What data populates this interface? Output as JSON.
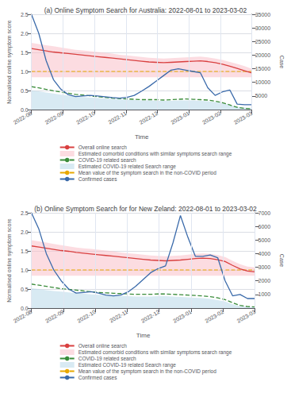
{
  "chart_data": [
    {
      "type": "line",
      "title": "(a) Online Symptom Search for Australia: 2022-08-01 to 2023-03-02",
      "xlabel": "Time",
      "ylabel": "Normalised online symptom score",
      "y2label": "Case",
      "x": [
        0,
        1,
        2,
        3,
        4,
        5,
        6,
        7,
        8,
        9,
        10,
        11,
        12,
        13,
        14,
        15,
        16,
        17,
        18,
        19,
        20,
        21,
        22,
        23,
        24,
        25,
        26,
        27,
        28,
        29,
        30
      ],
      "xlim": [
        0,
        30
      ],
      "xticks": [
        {
          "value": 0,
          "label": "2022-08"
        },
        {
          "value": 4.285714285714286,
          "label": "2022-09"
        },
        {
          "value": 8.571428571428571,
          "label": "2022-10"
        },
        {
          "value": 12.857142857142858,
          "label": "2022-11"
        },
        {
          "value": 17.142857142857142,
          "label": "2022-12"
        },
        {
          "value": 21.428571428571427,
          "label": "2023-01"
        },
        {
          "value": 25.714285714285715,
          "label": "2023-02"
        },
        {
          "value": 30,
          "label": "2023-03"
        }
      ],
      "ylim": [
        0.0,
        2.5
      ],
      "yticks": [
        {
          "value": 0.0,
          "label": "0.0"
        },
        0.5,
        {
          "value": 1.0,
          "label": "1.0"
        },
        1.5,
        {
          "value": 2.0,
          "label": "2.0"
        },
        2.5
      ],
      "y2lim": [
        0,
        35000
      ],
      "y2ticks": [
        5000,
        10000,
        15000,
        20000,
        25000,
        30000,
        35000
      ],
      "grid": true,
      "legend": "bottom",
      "series": [
        {
          "name": "Overall online search",
          "type": "line",
          "color": "#d94040",
          "line_style": "solid",
          "values": [
            1.6,
            1.57,
            1.54,
            1.51,
            1.49,
            1.47,
            1.45,
            1.43,
            1.41,
            1.39,
            1.37,
            1.35,
            1.33,
            1.31,
            1.29,
            1.27,
            1.25,
            1.24,
            1.23,
            1.24,
            1.25,
            1.26,
            1.27,
            1.28,
            1.26,
            1.23,
            1.19,
            1.14,
            1.08,
            1.02,
            0.96
          ]
        },
        {
          "name": "Estimated comorbid conditions with similar symptoms search range",
          "type": "band",
          "color": "#f9c0c8",
          "lower": [
            0.85,
            0.85,
            0.85,
            0.85,
            0.85,
            0.85,
            0.85,
            0.85,
            0.85,
            0.85,
            0.85,
            0.85,
            0.85,
            0.85,
            0.85,
            0.85,
            0.85,
            0.85,
            0.85,
            0.85,
            0.85,
            0.85,
            0.85,
            0.85,
            0.85,
            0.85,
            0.85,
            0.85,
            0.85,
            0.85,
            0.85
          ],
          "upper": [
            1.75,
            1.72,
            1.69,
            1.66,
            1.63,
            1.6,
            1.57,
            1.55,
            1.53,
            1.51,
            1.49,
            1.47,
            1.44,
            1.42,
            1.4,
            1.38,
            1.36,
            1.35,
            1.34,
            1.35,
            1.36,
            1.37,
            1.38,
            1.39,
            1.37,
            1.34,
            1.3,
            1.25,
            1.2,
            1.14,
            1.07
          ]
        },
        {
          "name": "COVID-19 related search",
          "type": "line",
          "color": "#3a8c3a",
          "line_style": "dashed",
          "values": [
            0.6,
            0.57,
            0.53,
            0.49,
            0.46,
            0.43,
            0.4,
            0.38,
            0.36,
            0.34,
            0.32,
            0.3,
            0.29,
            0.28,
            0.27,
            0.26,
            0.26,
            0.26,
            0.25,
            0.26,
            0.27,
            0.28,
            0.27,
            0.26,
            0.25,
            0.22,
            0.18,
            0.12,
            0.06,
            0.03,
            0.02
          ]
        },
        {
          "name": "Estimated COVID-19 related Search range",
          "type": "band",
          "color": "#b8d8ea",
          "lower": [
            0.0,
            0.0,
            0.0,
            0.0,
            0.0,
            0.0,
            0.0,
            0.0,
            0.0,
            0.0,
            0.0,
            0.0,
            0.0,
            0.0,
            0.0,
            0.0,
            0.0,
            0.0,
            0.0,
            0.0,
            0.0,
            0.0,
            0.0,
            0.0,
            0.0,
            0.0,
            0.0,
            0.0,
            0.0,
            0.0,
            0.0
          ],
          "upper": [
            0.5,
            0.48,
            0.45,
            0.42,
            0.39,
            0.37,
            0.35,
            0.33,
            0.31,
            0.3,
            0.29,
            0.28,
            0.27,
            0.26,
            0.25,
            0.24,
            0.24,
            0.23,
            0.23,
            0.23,
            0.24,
            0.24,
            0.24,
            0.23,
            0.22,
            0.2,
            0.17,
            0.12,
            0.07,
            0.05,
            0.04
          ]
        },
        {
          "name": "Mean value of the symptom search in the non-COVID period",
          "type": "hline",
          "color": "#e8a800",
          "line_style": "dashed",
          "y": 1.0
        },
        {
          "name": "Confirmed cases",
          "type": "line",
          "color": "#3a6aaa",
          "line_style": "solid",
          "axis": "y2",
          "values": [
            35000,
            28000,
            18000,
            11000,
            7500,
            5500,
            4800,
            5000,
            5200,
            5000,
            4700,
            4400,
            4200,
            4500,
            5200,
            6800,
            8500,
            10500,
            12500,
            14500,
            15000,
            14500,
            14000,
            13500,
            8000,
            5200,
            6500,
            7200,
            2000,
            1800,
            1800
          ]
        }
      ]
    },
    {
      "type": "line",
      "title": "(b) Online Symptom Search for for New Zeland: 2022-08-01 to 2023-03-02",
      "xlabel": "Time",
      "ylabel": "Normalised online symptom score",
      "y2label": "Case",
      "x": [
        0,
        1,
        2,
        3,
        4,
        5,
        6,
        7,
        8,
        9,
        10,
        11,
        12,
        13,
        14,
        15,
        16,
        17,
        18,
        19,
        20,
        21,
        22,
        23,
        24,
        25,
        26,
        27,
        28,
        29,
        30
      ],
      "xlim": [
        0,
        30
      ],
      "xticks": [
        {
          "value": 0,
          "label": "2022-08"
        },
        {
          "value": 4.285714285714286,
          "label": "2022-09"
        },
        {
          "value": 8.571428571428571,
          "label": "2022-10"
        },
        {
          "value": 12.857142857142858,
          "label": "2022-11"
        },
        {
          "value": 17.142857142857142,
          "label": "2022-12"
        },
        {
          "value": 21.428571428571427,
          "label": "2023-01"
        },
        {
          "value": 25.714285714285715,
          "label": "2023-02"
        },
        {
          "value": 30,
          "label": "2023-03"
        }
      ],
      "ylim": [
        0.0,
        2.5
      ],
      "yticks": [
        {
          "value": 0.0,
          "label": "0.0"
        },
        0.5,
        {
          "value": 1.0,
          "label": "1.0"
        },
        1.5,
        {
          "value": 2.0,
          "label": "2.0"
        },
        2.5
      ],
      "y2lim": [
        0,
        7000
      ],
      "y2ticks": [
        1000,
        2000,
        3000,
        4000,
        5000,
        6000,
        7000
      ],
      "grid": true,
      "legend": "bottom",
      "series": [
        {
          "name": "Overall online search",
          "type": "line",
          "color": "#d94040",
          "line_style": "solid",
          "values": [
            1.63,
            1.6,
            1.57,
            1.54,
            1.51,
            1.49,
            1.46,
            1.44,
            1.42,
            1.4,
            1.38,
            1.36,
            1.34,
            1.32,
            1.3,
            1.28,
            1.26,
            1.25,
            1.24,
            1.25,
            1.26,
            1.28,
            1.3,
            1.31,
            1.3,
            1.27,
            1.22,
            1.12,
            1.03,
            0.97,
            0.95
          ]
        },
        {
          "name": "Estimated comorbid conditions with similar symptoms search range",
          "type": "band",
          "color": "#f9c0c8",
          "lower": [
            0.85,
            0.85,
            0.85,
            0.85,
            0.85,
            0.85,
            0.85,
            0.85,
            0.85,
            0.85,
            0.85,
            0.85,
            0.85,
            0.85,
            0.85,
            0.85,
            0.85,
            0.85,
            0.85,
            0.85,
            0.85,
            0.85,
            0.85,
            0.85,
            0.85,
            0.85,
            0.85,
            0.85,
            0.85,
            0.85,
            0.85
          ],
          "upper": [
            1.78,
            1.75,
            1.72,
            1.68,
            1.65,
            1.62,
            1.59,
            1.57,
            1.55,
            1.53,
            1.51,
            1.49,
            1.46,
            1.44,
            1.42,
            1.4,
            1.38,
            1.37,
            1.36,
            1.37,
            1.38,
            1.4,
            1.42,
            1.43,
            1.42,
            1.39,
            1.34,
            1.24,
            1.15,
            1.09,
            1.07
          ]
        },
        {
          "name": "COVID-19 related search",
          "type": "line",
          "color": "#3a8c3a",
          "line_style": "dashed",
          "values": [
            0.63,
            0.6,
            0.57,
            0.54,
            0.51,
            0.49,
            0.47,
            0.45,
            0.43,
            0.41,
            0.4,
            0.39,
            0.38,
            0.37,
            0.36,
            0.36,
            0.36,
            0.37,
            0.37,
            0.36,
            0.35,
            0.34,
            0.33,
            0.32,
            0.3,
            0.27,
            0.22,
            0.14,
            0.07,
            0.04,
            0.03
          ]
        },
        {
          "name": "Estimated COVID-19 related Search range",
          "type": "band",
          "color": "#b8d8ea",
          "lower": [
            0.0,
            0.0,
            0.0,
            0.0,
            0.0,
            0.0,
            0.0,
            0.0,
            0.0,
            0.0,
            0.0,
            0.0,
            0.0,
            0.0,
            0.0,
            0.0,
            0.0,
            0.0,
            0.0,
            0.0,
            0.0,
            0.0,
            0.0,
            0.0,
            0.0,
            0.0,
            0.0,
            0.0,
            0.0,
            0.0,
            0.0
          ],
          "upper": [
            0.52,
            0.5,
            0.47,
            0.45,
            0.43,
            0.41,
            0.39,
            0.38,
            0.36,
            0.35,
            0.34,
            0.33,
            0.32,
            0.31,
            0.3,
            0.3,
            0.3,
            0.31,
            0.31,
            0.3,
            0.29,
            0.28,
            0.27,
            0.26,
            0.24,
            0.21,
            0.17,
            0.1,
            0.05,
            0.03,
            0.02
          ]
        },
        {
          "name": "Mean value of the symptom search in the non-COVID period",
          "type": "hline",
          "color": "#e8a800",
          "line_style": "dashed",
          "y": 1.0
        },
        {
          "name": "Confirmed cases",
          "type": "line",
          "color": "#3a6aaa",
          "line_style": "solid",
          "axis": "y2",
          "values": [
            7000,
            5800,
            4000,
            2800,
            2000,
            1400,
            1100,
            1150,
            1200,
            1100,
            950,
            900,
            950,
            1200,
            1600,
            2100,
            2600,
            2900,
            3100,
            4800,
            6800,
            5200,
            3800,
            3800,
            3900,
            3700,
            2000,
            900,
            1000,
            700,
            700
          ]
        }
      ]
    }
  ]
}
